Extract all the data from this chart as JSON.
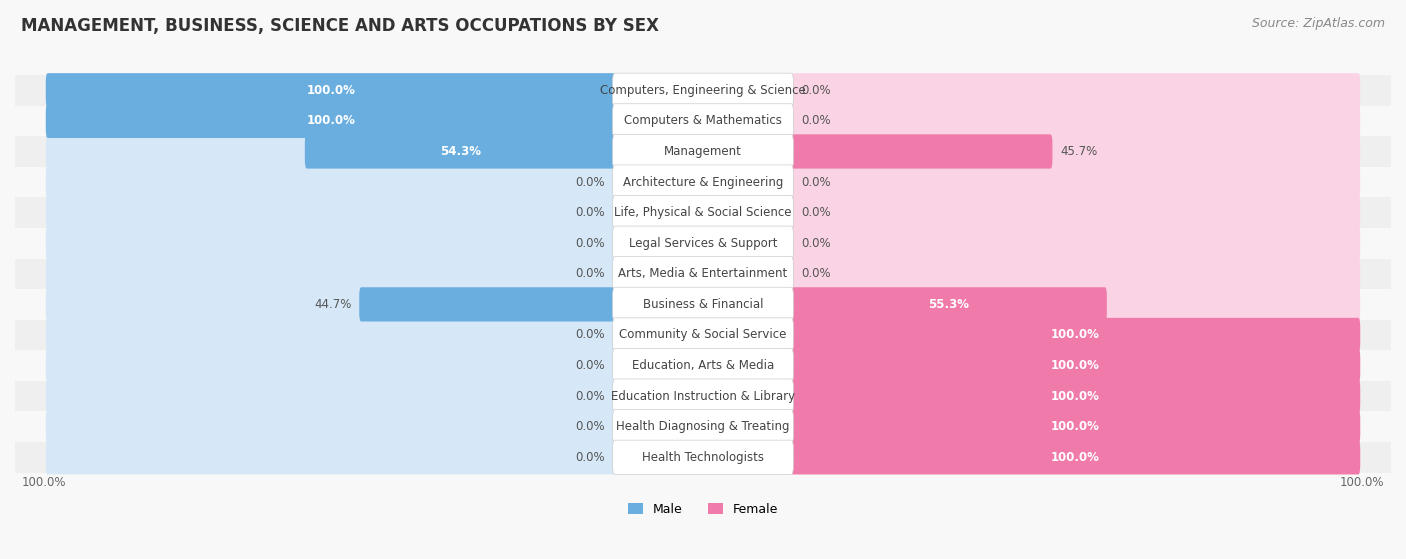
{
  "title": "MANAGEMENT, BUSINESS, SCIENCE AND ARTS OCCUPATIONS BY SEX",
  "source": "Source: ZipAtlas.com",
  "categories": [
    "Computers, Engineering & Science",
    "Computers & Mathematics",
    "Management",
    "Architecture & Engineering",
    "Life, Physical & Social Science",
    "Legal Services & Support",
    "Arts, Media & Entertainment",
    "Business & Financial",
    "Community & Social Service",
    "Education, Arts & Media",
    "Education Instruction & Library",
    "Health Diagnosing & Treating",
    "Health Technologists"
  ],
  "male_pct": [
    100.0,
    100.0,
    54.3,
    0.0,
    0.0,
    0.0,
    0.0,
    44.7,
    0.0,
    0.0,
    0.0,
    0.0,
    0.0
  ],
  "female_pct": [
    0.0,
    0.0,
    45.7,
    0.0,
    0.0,
    0.0,
    0.0,
    55.3,
    100.0,
    100.0,
    100.0,
    100.0,
    100.0
  ],
  "male_color": "#6aaee0",
  "female_color": "#f07aaa",
  "male_bg_color": "#d6e8f7",
  "female_bg_color": "#fad4e5",
  "row_bg_odd": "#efefef",
  "row_bg_even": "#f8f8f8",
  "fig_bg": "#f8f8f8",
  "title_fontsize": 12,
  "annotation_fontsize": 8.5,
  "source_fontsize": 9,
  "cat_label_fontsize": 8.5
}
